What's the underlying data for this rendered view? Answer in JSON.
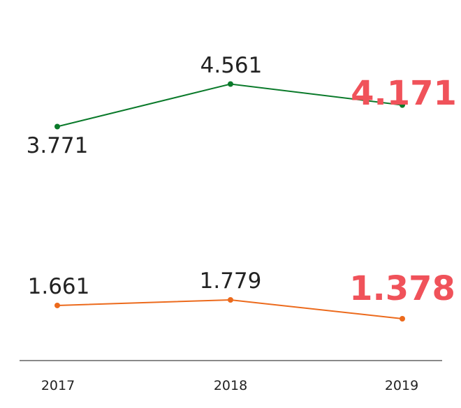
{
  "chart_data": {
    "type": "line",
    "categories": [
      "2017",
      "2018",
      "2019"
    ],
    "series": [
      {
        "values": [
          3771,
          4561,
          4171
        ],
        "labels": [
          "3.771",
          "4.561",
          "4.171"
        ],
        "color": "#0a7a2a",
        "highlight_color": "#f0525a"
      },
      {
        "values": [
          1661,
          1779,
          1378
        ],
        "labels": [
          "1.661",
          "1.779",
          "1.378"
        ],
        "color": "#ec6a1c",
        "highlight_color": "#f0525a"
      }
    ],
    "axis_color": "#8a8a8a",
    "grid": false,
    "legend": "none"
  }
}
